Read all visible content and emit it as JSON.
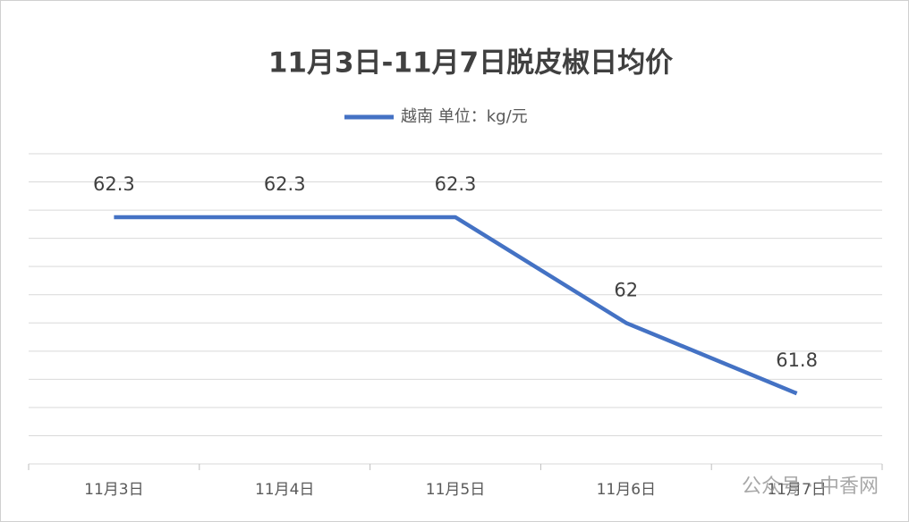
{
  "chart_data": {
    "type": "line",
    "title": "11月3日-11月7日脱皮椒日均价",
    "categories": [
      "11月3日",
      "11月4日",
      "11月5日",
      "11月6日",
      "11月7日"
    ],
    "series": [
      {
        "name": "越南 单位：kg/元",
        "color": "#4472c4",
        "values": [
          62.3,
          62.3,
          62.3,
          62,
          61.8
        ]
      }
    ],
    "ylim": [
      61.6,
      62.48
    ],
    "yticks": [
      61.6,
      61.68,
      61.76,
      61.84,
      61.92,
      62,
      62.08,
      62.16,
      62.24,
      62.32,
      62.4,
      62.48
    ],
    "grid": true,
    "legend": "top",
    "watermark": "公众号 · 中香网"
  }
}
